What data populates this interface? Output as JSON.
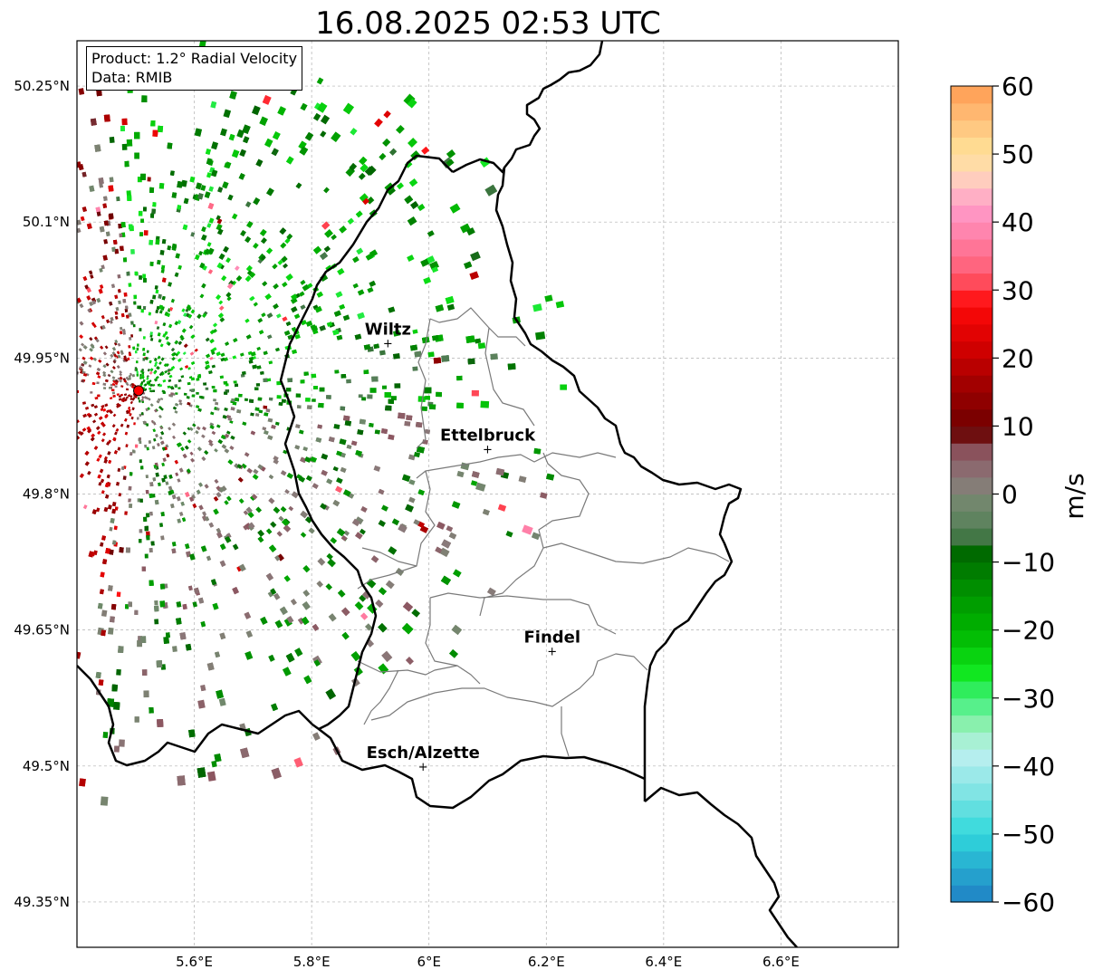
{
  "title": "16.08.2025 02:53 UTC",
  "info_box": {
    "product": "Product: 1.2° Radial Velocity",
    "data_source": "Data: RMIB"
  },
  "map": {
    "projection": "PlateCarree",
    "lon_range": [
      5.4,
      6.8
    ],
    "lat_range": [
      49.3,
      50.3
    ],
    "gridlines": true,
    "lon_ticks": [
      {
        "value": 5.6,
        "label": "5.6°E"
      },
      {
        "value": 5.8,
        "label": "5.8°E"
      },
      {
        "value": 6.0,
        "label": "6°E"
      },
      {
        "value": 6.2,
        "label": "6.2°E"
      },
      {
        "value": 6.4,
        "label": "6.4°E"
      },
      {
        "value": 6.6,
        "label": "6.6°E"
      }
    ],
    "lat_ticks": [
      {
        "value": 50.25,
        "label": "50.25°N"
      },
      {
        "value": 50.1,
        "label": "50.1°N"
      },
      {
        "value": 49.95,
        "label": "49.95°N"
      },
      {
        "value": 49.8,
        "label": "49.8°N"
      },
      {
        "value": 49.65,
        "label": "49.65°N"
      },
      {
        "value": 49.5,
        "label": "49.5°N"
      },
      {
        "value": 49.35,
        "label": "49.35°N"
      }
    ],
    "radar_site": {
      "lon": 5.505,
      "lat": 49.914,
      "marker_color": "#ff0000"
    },
    "cities": [
      {
        "name": "Wiltz",
        "lon": 5.93,
        "lat": 49.967
      },
      {
        "name": "Ettelbruck",
        "lon": 6.1,
        "lat": 49.85
      },
      {
        "name": "Findel",
        "lon": 6.21,
        "lat": 49.627
      },
      {
        "name": "Esch/Alzette",
        "lon": 5.99,
        "lat": 49.5
      }
    ]
  },
  "colorbar": {
    "label": "m/s",
    "vmin": -60,
    "vmax": 60,
    "ticks": [
      {
        "value": 60,
        "label": "60"
      },
      {
        "value": 50,
        "label": "50"
      },
      {
        "value": 40,
        "label": "40"
      },
      {
        "value": 30,
        "label": "30"
      },
      {
        "value": 20,
        "label": "20"
      },
      {
        "value": 10,
        "label": "10"
      },
      {
        "value": 0,
        "label": "0"
      },
      {
        "value": -10,
        "label": "−10"
      },
      {
        "value": -20,
        "label": "−20"
      },
      {
        "value": -30,
        "label": "−30"
      },
      {
        "value": -40,
        "label": "−40"
      },
      {
        "value": -50,
        "label": "−50"
      },
      {
        "value": -60,
        "label": "−60"
      }
    ],
    "color_stops": [
      {
        "value": -60,
        "color": "#1f7fc4"
      },
      {
        "value": -54,
        "color": "#28b4d2"
      },
      {
        "value": -50,
        "color": "#30d9dc"
      },
      {
        "value": -44,
        "color": "#7ee3e3"
      },
      {
        "value": -38,
        "color": "#bdf0f0"
      },
      {
        "value": -34,
        "color": "#8ef0b0"
      },
      {
        "value": -30,
        "color": "#3ef07a"
      },
      {
        "value": -26,
        "color": "#0ee61a"
      },
      {
        "value": -20,
        "color": "#00b400"
      },
      {
        "value": -14,
        "color": "#009000"
      },
      {
        "value": -8,
        "color": "#006400"
      },
      {
        "value": -6,
        "color": "#4c7a50"
      },
      {
        "value": -2,
        "color": "#6d8a6a"
      },
      {
        "value": 2,
        "color": "#8a7a7a"
      },
      {
        "value": 6,
        "color": "#8c5560"
      },
      {
        "value": 8,
        "color": "#7a3a40"
      },
      {
        "value": 9,
        "color": "#6a0000"
      },
      {
        "value": 16,
        "color": "#a00000"
      },
      {
        "value": 22,
        "color": "#d60000"
      },
      {
        "value": 28,
        "color": "#ff0a0a"
      },
      {
        "value": 32,
        "color": "#ff5a6e"
      },
      {
        "value": 38,
        "color": "#ff80a8"
      },
      {
        "value": 42,
        "color": "#ff9ac8"
      },
      {
        "value": 46,
        "color": "#ffcbc0"
      },
      {
        "value": 50,
        "color": "#ffe49a"
      },
      {
        "value": 55,
        "color": "#ffc07a"
      },
      {
        "value": 60,
        "color": "#ff9a50"
      }
    ]
  }
}
